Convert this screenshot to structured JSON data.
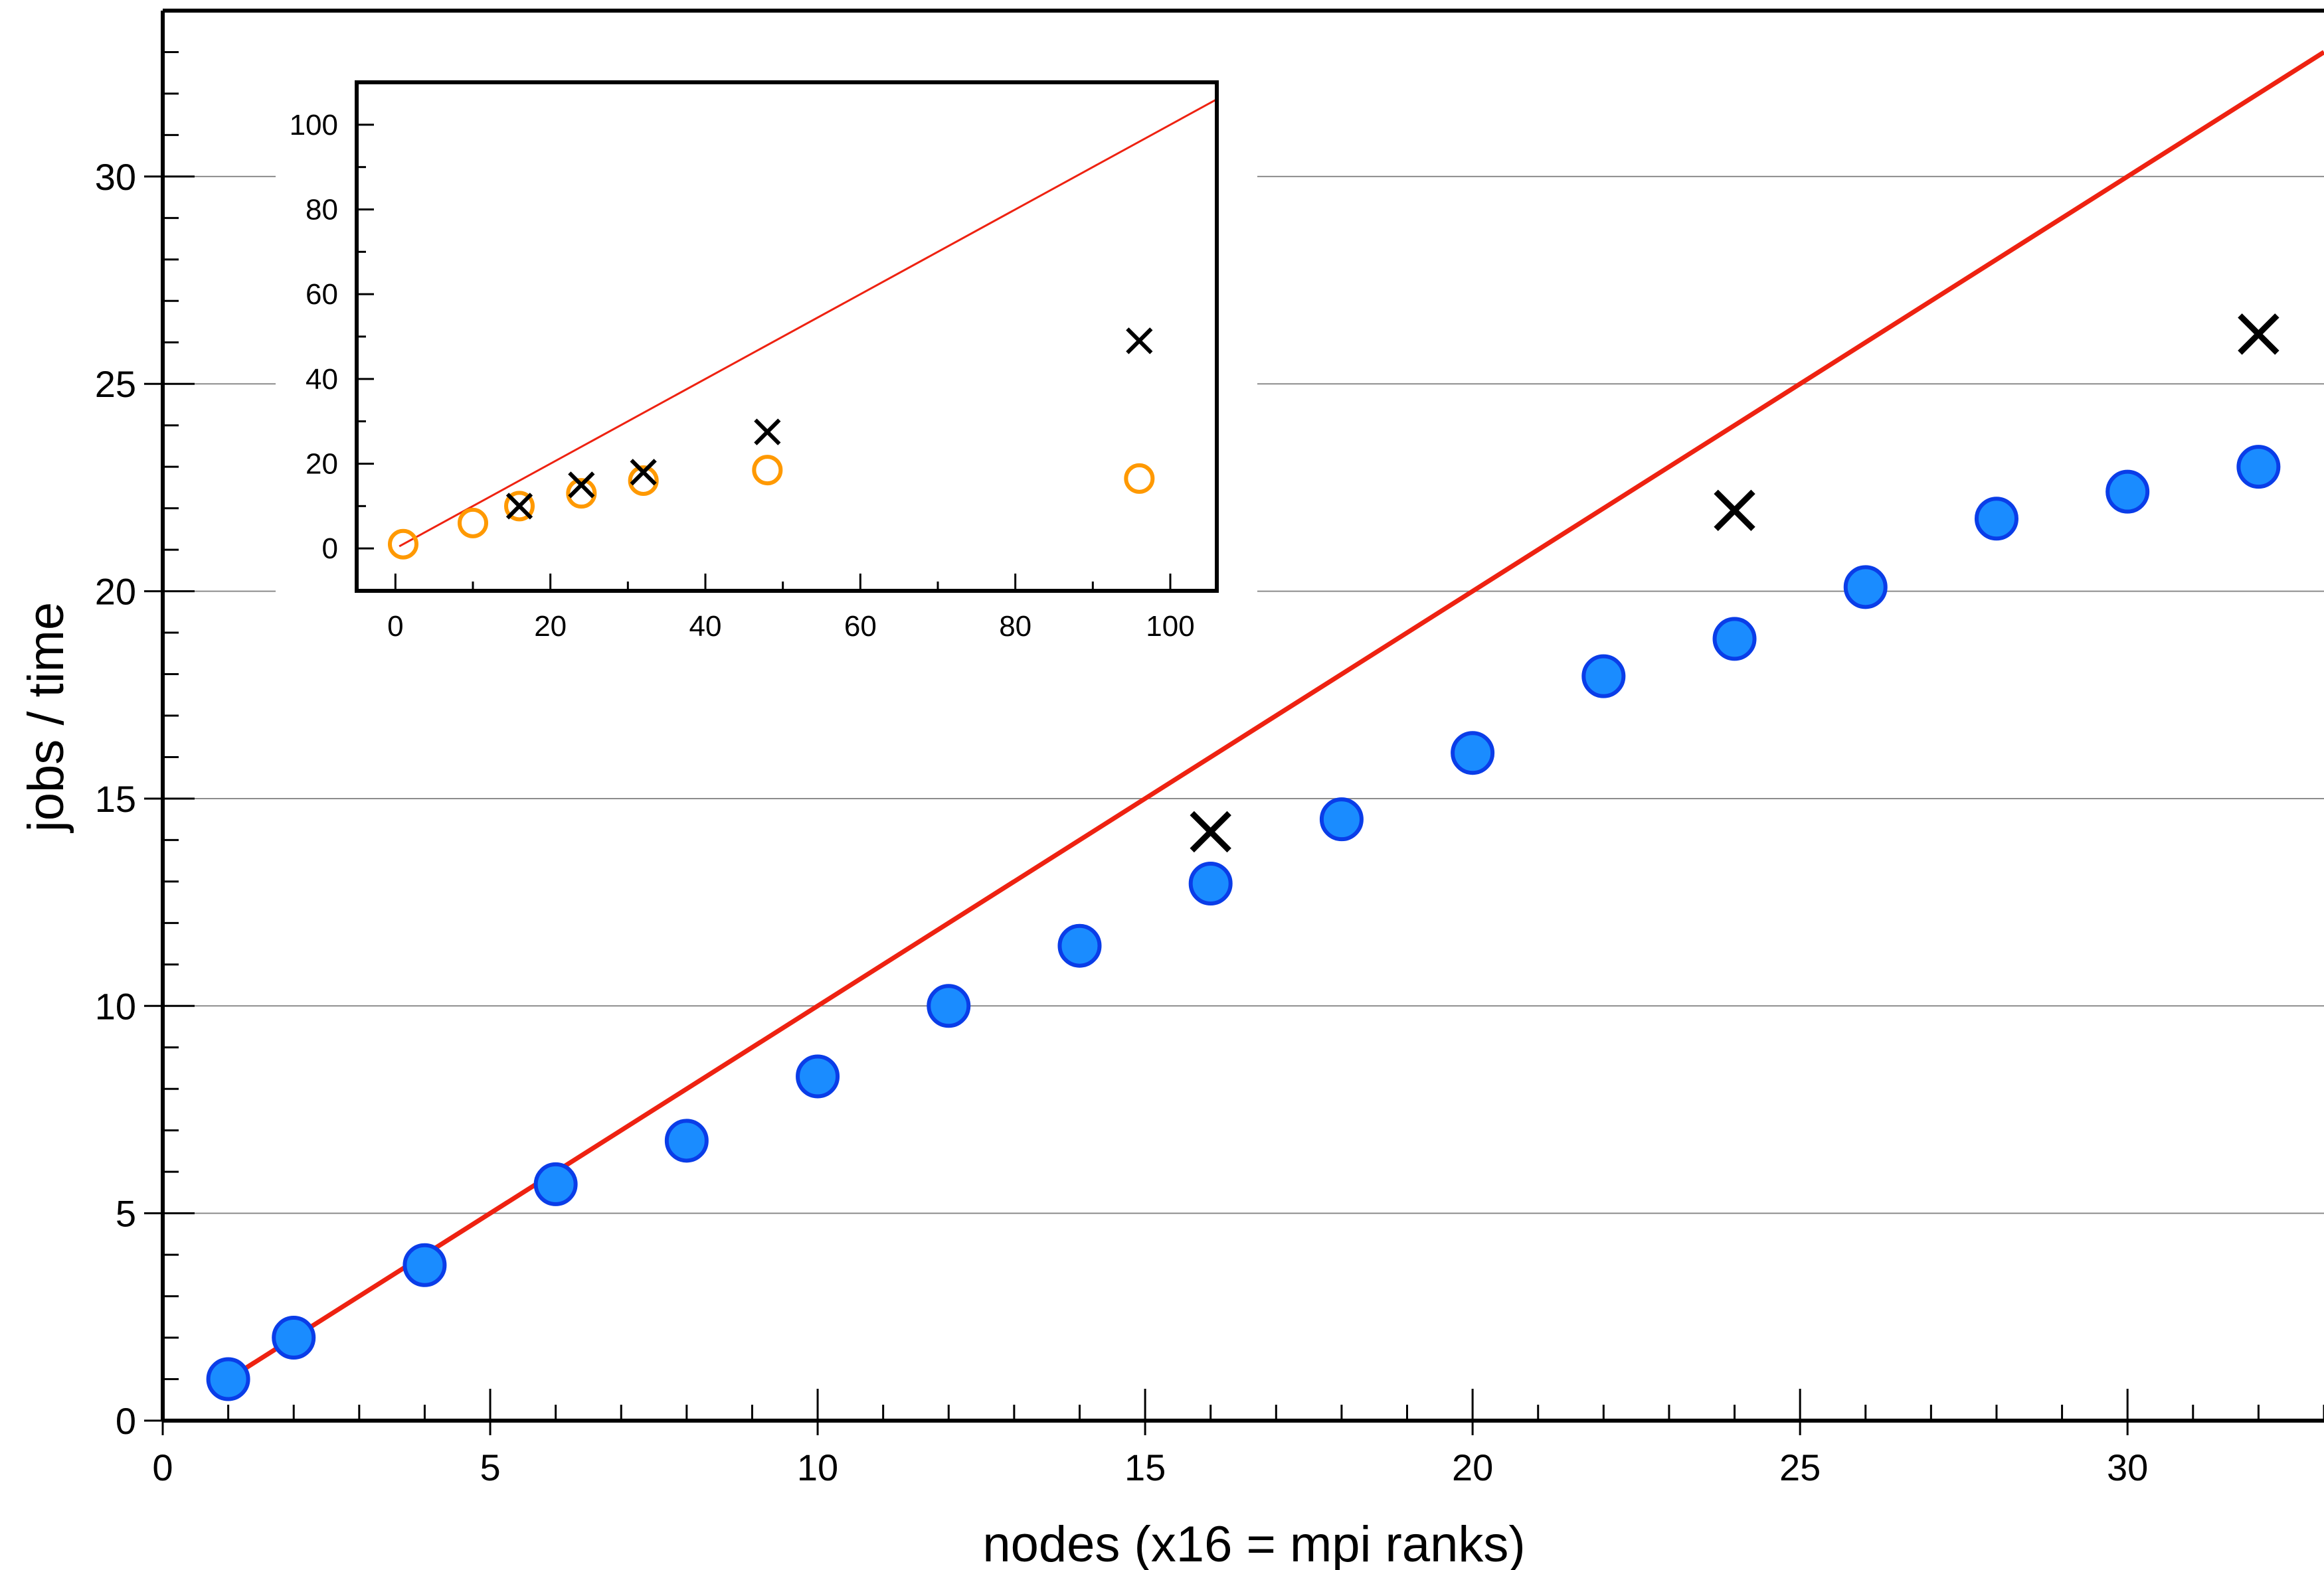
{
  "chart_data": [
    {
      "type": "scatter",
      "xlabel": "nodes (x16 = mpi ranks)",
      "ylabel": "jobs / time",
      "xlim": [
        0,
        33
      ],
      "ylim": [
        0,
        34
      ],
      "xticks": [
        0,
        5,
        10,
        15,
        20,
        25,
        30
      ],
      "yticks": [
        0,
        5,
        10,
        15,
        20,
        25,
        30
      ],
      "grid": "horizontal",
      "colors": {
        "ideal": "#ee2211",
        "measured_fill": "#1a8cff",
        "measured_stroke": "#0a3de8",
        "cross": "#000000"
      },
      "series": [
        {
          "kind": "line",
          "x": [
            0.8,
            33
          ],
          "y": [
            0.8,
            33
          ]
        },
        {
          "kind": "filled-circle",
          "x": [
            1,
            2,
            4,
            6,
            8,
            10,
            12,
            14,
            16,
            18,
            20,
            22,
            24,
            26,
            28,
            30,
            32
          ],
          "y": [
            1.0,
            2.0,
            3.75,
            5.7,
            6.75,
            8.3,
            10.0,
            11.45,
            12.95,
            14.5,
            16.1,
            17.95,
            18.85,
            20.1,
            21.75,
            22.4,
            23.0
          ]
        },
        {
          "kind": "cross",
          "x": [
            16,
            24,
            32
          ],
          "y": [
            14.2,
            21.95,
            26.2
          ]
        }
      ]
    },
    {
      "type": "scatter",
      "inset": true,
      "xlim": [
        -5,
        106
      ],
      "ylim": [
        -10,
        110
      ],
      "xticks": [
        0,
        20,
        40,
        60,
        80,
        100
      ],
      "yticks": [
        0,
        20,
        40,
        60,
        80,
        100
      ],
      "colors": {
        "ideal": "#ee2211",
        "open_circle": "#ff9900",
        "cross": "#000000"
      },
      "series": [
        {
          "kind": "line",
          "x": [
            0.5,
            106
          ],
          "y": [
            0.5,
            106
          ]
        },
        {
          "kind": "open-circle",
          "x": [
            1,
            10,
            16,
            24,
            32,
            48,
            96
          ],
          "y": [
            1,
            6,
            10,
            13,
            16,
            18.5,
            16.5
          ]
        },
        {
          "kind": "cross",
          "x": [
            16,
            24,
            32,
            48,
            96
          ],
          "y": [
            10,
            15,
            18,
            27.5,
            49
          ]
        }
      ]
    }
  ]
}
